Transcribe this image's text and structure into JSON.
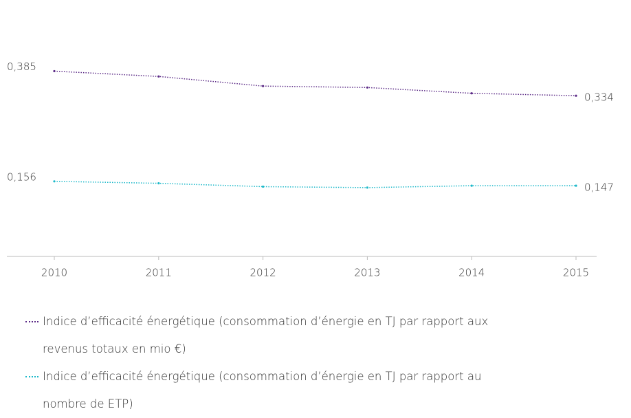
{
  "chart_data": {
    "type": "line",
    "categories": [
      "2010",
      "2011",
      "2012",
      "2013",
      "2014",
      "2015"
    ],
    "series": [
      {
        "name": "Indice d’efficacité énergétique (consommation d’énergie en TJ par rapport aux revenus totaux en mio €)",
        "color": "#5b2a86",
        "values": [
          0.385,
          0.374,
          0.354,
          0.351,
          0.339,
          0.334
        ],
        "value_labels": [
          "0,385",
          null,
          null,
          null,
          null,
          "0,334"
        ]
      },
      {
        "name": "Indice d’efficacité énergétique (consommation d’énergie en TJ par rapport au nombre de ETP)",
        "color": "#1bb8c9",
        "values": [
          0.156,
          0.152,
          0.145,
          0.143,
          0.147,
          0.147
        ],
        "value_labels": [
          "0,156",
          null,
          null,
          null,
          null,
          "0,147"
        ]
      }
    ],
    "ylim": [
      0,
      0.5
    ]
  }
}
